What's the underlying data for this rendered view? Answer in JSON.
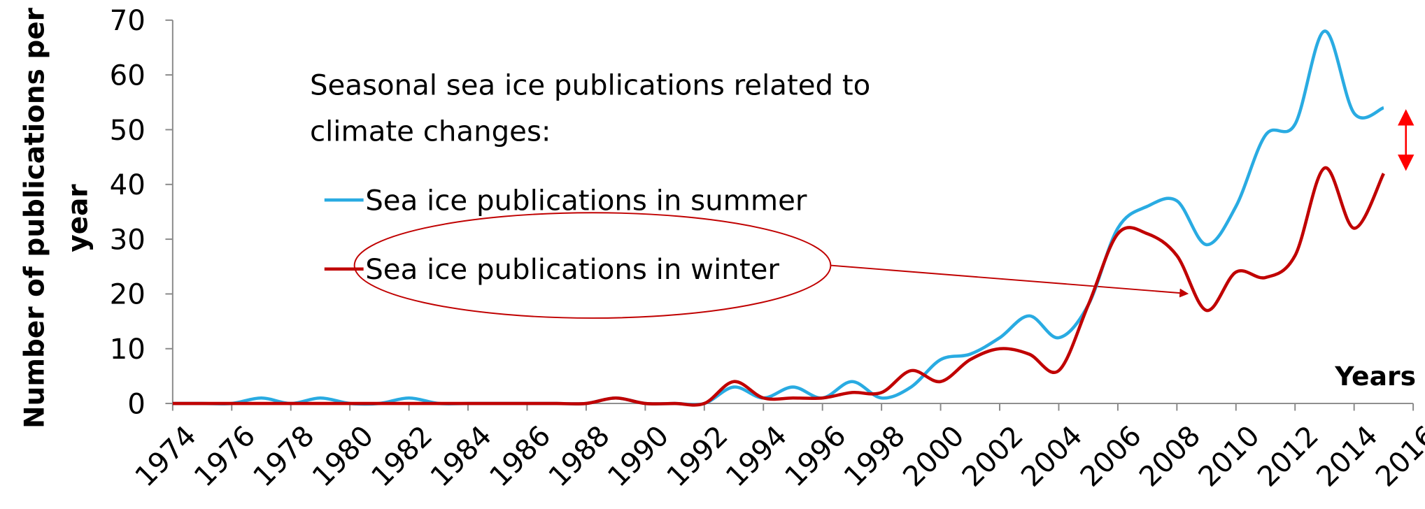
{
  "chart_data": {
    "type": "line",
    "ylabel_lines": [
      "Number of publications per",
      "year"
    ],
    "xlabel": "Years",
    "annotation_lines": [
      "Seasonal sea ice publications related to",
      "climate changes:"
    ],
    "x": [
      1974,
      1975,
      1976,
      1977,
      1978,
      1979,
      1980,
      1981,
      1982,
      1983,
      1984,
      1985,
      1986,
      1987,
      1988,
      1989,
      1990,
      1991,
      1992,
      1993,
      1994,
      1995,
      1996,
      1997,
      1998,
      1999,
      2000,
      2001,
      2002,
      2003,
      2004,
      2005,
      2006,
      2007,
      2008,
      2009,
      2010,
      2011,
      2012,
      2013,
      2014,
      2015
    ],
    "series": [
      {
        "name": "Sea ice publications in summer",
        "color": "#29abe2",
        "values": [
          0,
          0,
          0,
          1,
          0,
          1,
          0,
          0,
          1,
          0,
          0,
          0,
          0,
          0,
          0,
          1,
          0,
          0,
          0,
          3,
          1,
          3,
          1,
          4,
          1,
          3,
          8,
          9,
          12,
          16,
          12,
          18,
          32,
          36,
          37,
          29,
          36,
          49,
          51,
          68,
          53,
          54
        ]
      },
      {
        "name": "Sea ice publications in winter",
        "color": "#c00000",
        "values": [
          0,
          0,
          0,
          0,
          0,
          0,
          0,
          0,
          0,
          0,
          0,
          0,
          0,
          0,
          0,
          1,
          0,
          0,
          0,
          4,
          1,
          1,
          1,
          2,
          2,
          6,
          4,
          8,
          10,
          9,
          6,
          18,
          31,
          31,
          27,
          17,
          24,
          23,
          27,
          43,
          32,
          42
        ]
      }
    ],
    "xlim": [
      1974,
      2016
    ],
    "xticks": [
      1974,
      1976,
      1978,
      1980,
      1982,
      1984,
      1986,
      1988,
      1990,
      1992,
      1994,
      1996,
      1998,
      2000,
      2002,
      2004,
      2006,
      2008,
      2010,
      2012,
      2014,
      2016
    ],
    "ylim": [
      0,
      70
    ],
    "yticks": [
      0,
      10,
      20,
      30,
      40,
      50,
      60,
      70
    ],
    "grid": false,
    "legend": "upper left"
  }
}
